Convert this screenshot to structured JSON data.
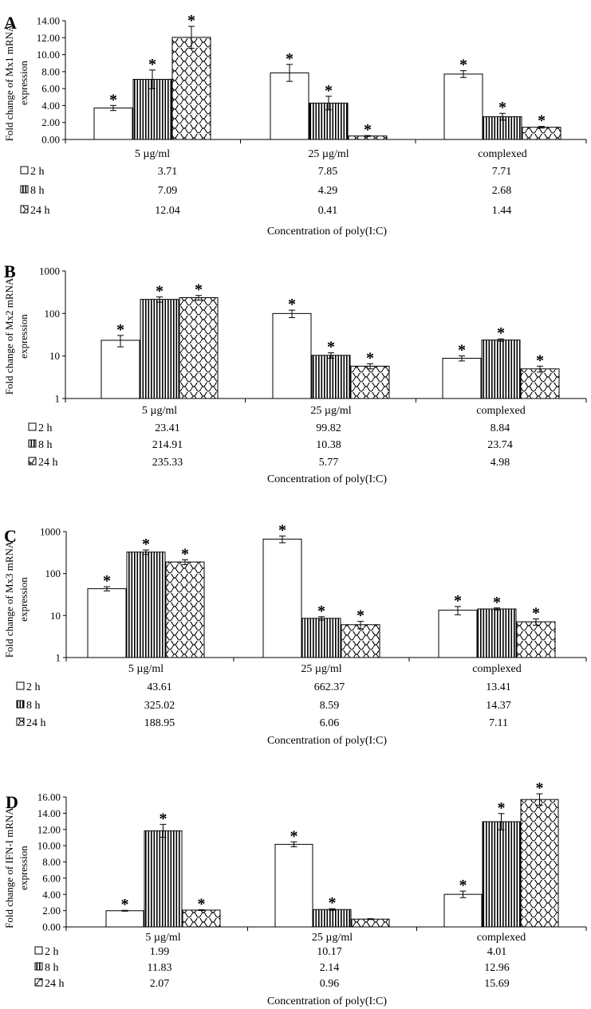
{
  "figure": {
    "series_labels": [
      "2 h",
      "8 h",
      "24 h"
    ],
    "categories": [
      "5 µg/ml",
      "25 µg/ml",
      "complexed"
    ],
    "xlabel": "Concentration of poly(I:C)",
    "significance_marker": "*"
  },
  "chart_data": [
    {
      "panel": "A",
      "type": "bar",
      "scale": "linear",
      "ylabel": [
        "Fold change of Mx1 mRNA",
        "expression"
      ],
      "ylim": [
        0,
        14
      ],
      "yticks": [
        "0.00",
        "2.00",
        "4.00",
        "6.00",
        "8.00",
        "10.00",
        "12.00",
        "14.00"
      ],
      "categories": [
        "5 µg/ml",
        "25 µg/ml",
        "complexed"
      ],
      "xlabel": "Concentration of poly(I:C)",
      "series": [
        {
          "name": "2 h",
          "values": [
            3.71,
            7.85,
            7.71
          ],
          "errors": [
            0.3,
            1.0,
            0.4
          ],
          "sig": [
            true,
            true,
            true
          ]
        },
        {
          "name": "8 h",
          "values": [
            7.09,
            4.29,
            2.68
          ],
          "errors": [
            1.1,
            0.8,
            0.4
          ],
          "sig": [
            true,
            true,
            true
          ]
        },
        {
          "name": "24 h",
          "values": [
            12.04,
            0.41,
            1.44
          ],
          "errors": [
            1.3,
            0.05,
            0.1
          ],
          "sig": [
            true,
            true,
            true
          ]
        }
      ],
      "table": [
        [
          "3.71",
          "7.85",
          "7.71"
        ],
        [
          "7.09",
          "4.29",
          "2.68"
        ],
        [
          "12.04",
          "0.41",
          "1.44"
        ]
      ]
    },
    {
      "panel": "B",
      "type": "bar",
      "scale": "log",
      "ylabel": [
        "Fold change of Mx2 mRNA",
        "expression"
      ],
      "ylim": [
        1,
        1000
      ],
      "yticks": [
        "1",
        "10",
        "100",
        "1000"
      ],
      "categories": [
        "5 µg/ml",
        "25 µg/ml",
        "complexed"
      ],
      "xlabel": "Concentration of poly(I:C)",
      "series": [
        {
          "name": "2 h",
          "values": [
            23.41,
            99.82,
            8.84
          ],
          "errors": [
            7,
            20,
            1.2
          ],
          "sig": [
            true,
            true,
            true
          ]
        },
        {
          "name": "8 h",
          "values": [
            214.91,
            10.38,
            23.74
          ],
          "errors": [
            30,
            1.5,
            1.5
          ],
          "sig": [
            true,
            true,
            true
          ]
        },
        {
          "name": "24 h",
          "values": [
            235.33,
            5.77,
            4.98
          ],
          "errors": [
            30,
            0.8,
            0.8
          ],
          "sig": [
            true,
            true,
            true
          ]
        }
      ],
      "table": [
        [
          "23.41",
          "99.82",
          "8.84"
        ],
        [
          "214.91",
          "10.38",
          "23.74"
        ],
        [
          "235.33",
          "5.77",
          "4.98"
        ]
      ]
    },
    {
      "panel": "C",
      "type": "bar",
      "scale": "log",
      "ylabel": [
        "Fold change of Mx3 mRNA",
        "expression"
      ],
      "ylim": [
        1,
        1000
      ],
      "yticks": [
        "1",
        "10",
        "100",
        "1000"
      ],
      "categories": [
        "5 µg/ml",
        "25 µg/ml",
        "complexed"
      ],
      "xlabel": "Concentration of poly(I:C)",
      "series": [
        {
          "name": "2 h",
          "values": [
            43.61,
            662.37,
            13.41
          ],
          "errors": [
            5,
            120,
            3
          ],
          "sig": [
            true,
            true,
            true
          ]
        },
        {
          "name": "8 h",
          "values": [
            325.02,
            8.59,
            14.37
          ],
          "errors": [
            40,
            0.8,
            0.8
          ],
          "sig": [
            true,
            true,
            true
          ]
        },
        {
          "name": "24 h",
          "values": [
            188.95,
            6.06,
            7.11
          ],
          "errors": [
            25,
            1.2,
            1.2
          ],
          "sig": [
            true,
            true,
            true
          ]
        }
      ],
      "table": [
        [
          "43.61",
          "662.37",
          "13.41"
        ],
        [
          "325.02",
          "8.59",
          "14.37"
        ],
        [
          "188.95",
          "6.06",
          "7.11"
        ]
      ]
    },
    {
      "panel": "D",
      "type": "bar",
      "scale": "linear",
      "ylabel": [
        "Fold change of IFN-I mRNA",
        "expression"
      ],
      "ylim": [
        0,
        16
      ],
      "yticks": [
        "0.00",
        "2.00",
        "4.00",
        "6.00",
        "8.00",
        "10.00",
        "12.00",
        "14.00",
        "16.00"
      ],
      "categories": [
        "5 µg/ml",
        "25 µg/ml",
        "complexed"
      ],
      "xlabel": "Concentration of poly(I:C)",
      "series": [
        {
          "name": "2 h",
          "values": [
            1.99,
            10.17,
            4.01
          ],
          "errors": [
            0.05,
            0.3,
            0.4
          ],
          "sig": [
            true,
            true,
            true
          ]
        },
        {
          "name": "8 h",
          "values": [
            11.83,
            2.14,
            12.96
          ],
          "errors": [
            0.8,
            0.1,
            1.0
          ],
          "sig": [
            true,
            true,
            true
          ]
        },
        {
          "name": "24 h",
          "values": [
            2.07,
            0.96,
            15.69
          ],
          "errors": [
            0.05,
            0.05,
            0.7
          ],
          "sig": [
            true,
            false,
            true
          ]
        }
      ],
      "table": [
        [
          "1.99",
          "10.17",
          "4.01"
        ],
        [
          "11.83",
          "2.14",
          "12.96"
        ],
        [
          "2.07",
          "0.96",
          "15.69"
        ]
      ]
    }
  ]
}
